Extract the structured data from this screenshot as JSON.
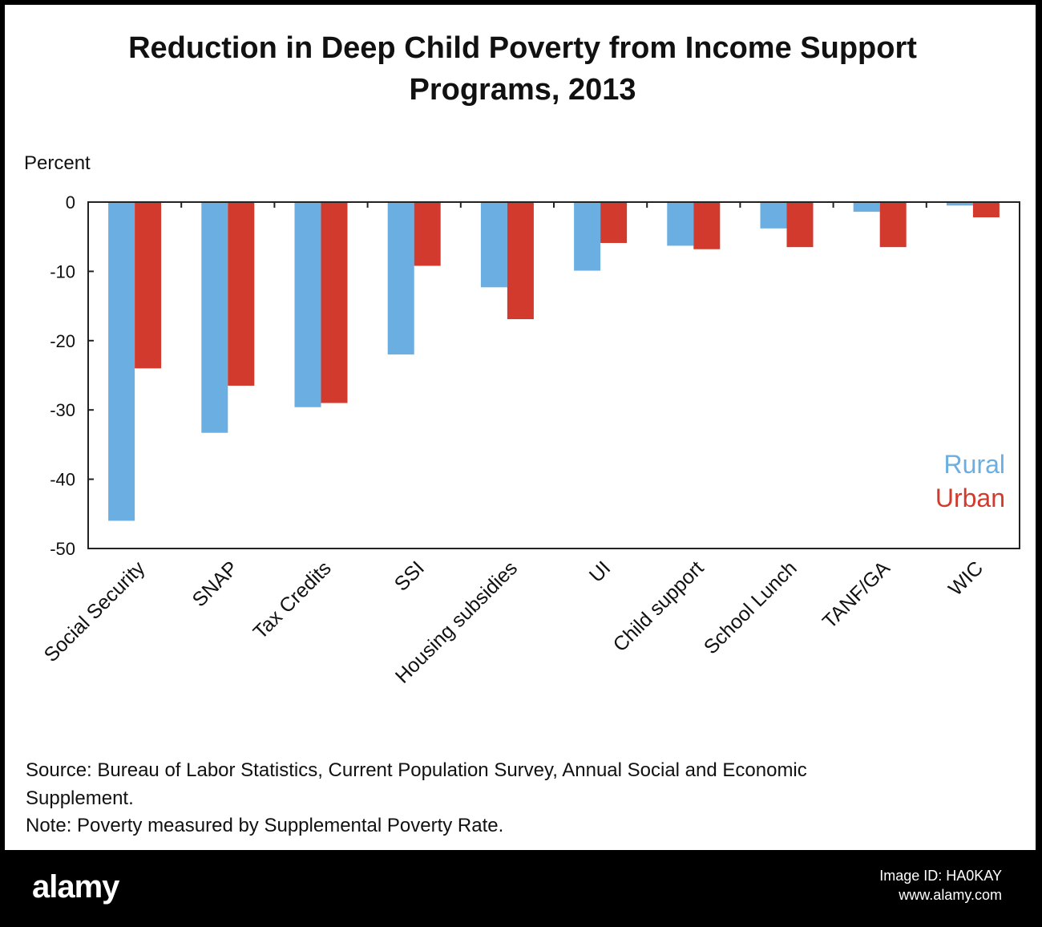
{
  "chart_data": {
    "type": "bar",
    "title_line1": "Reduction in Deep Child Poverty from Income Support",
    "title_line2": "Programs, 2013",
    "ylabel": "Percent",
    "ylim": [
      -50,
      0
    ],
    "yticks": [
      "0",
      "-10",
      "-20",
      "-30",
      "-40",
      "-50"
    ],
    "grid": false,
    "legend_position": "bottom-right",
    "categories": [
      "Social Security",
      "SNAP",
      "Tax Credits",
      "SSI",
      "Housing subsidies",
      "UI",
      "Child support",
      "School Lunch",
      "TANF/GA",
      "WIC"
    ],
    "series": [
      {
        "name": "Rural",
        "color": "#6aaee2",
        "values": [
          -46,
          -33.3,
          -29.6,
          -22,
          -12.3,
          -9.9,
          -6.3,
          -3.8,
          -1.4,
          -0.5
        ]
      },
      {
        "name": "Urban",
        "color": "#d13a2c",
        "values": [
          -24,
          -26.5,
          -29,
          -9.2,
          -16.9,
          -5.9,
          -6.8,
          -6.5,
          -6.5,
          -2.2
        ]
      }
    ],
    "source": "Source: Bureau of Labor Statistics, Current Population Survey, Annual Social and Economic",
    "source_cont": "Supplement.",
    "note": "Note: Poverty measured by Supplemental Poverty Rate."
  },
  "footer": {
    "logo": "alamy",
    "image_id": "Image ID: HA0KAY",
    "site": "www.alamy.com"
  }
}
